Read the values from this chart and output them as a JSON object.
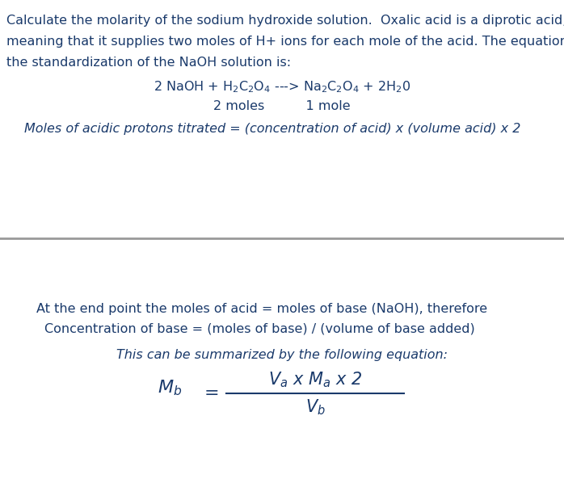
{
  "bg_color": "#ffffff",
  "text_color": "#1a3a6b",
  "line_color": "#999999",
  "para1_line1": "Calculate the molarity of the sodium hydroxide solution.  Oxalic acid is a diprotic acid,",
  "para1_line2": "meaning that it supplies two moles of H+ ions for each mole of the acid. The equation for",
  "para1_line3": "the standardization of the NaOH solution is:",
  "moles_text": "Moles of acidic protons titrated = (concentration of acid) x (volume acid) x 2",
  "bottom_line1": "At the end point the moles of acid = moles of base (NaOH), therefore",
  "bottom_line2": "Concentration of base = (moles of base) / (volume of base added)",
  "summary_line": "This can be summarized by the following equation:",
  "font_size_main": 11.5,
  "font_size_eq": 11.5
}
